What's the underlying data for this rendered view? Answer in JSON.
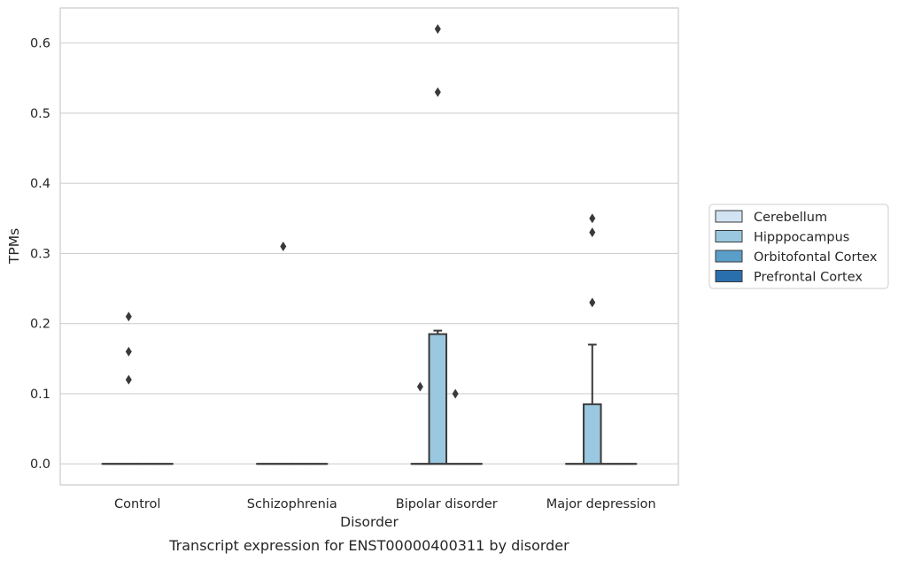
{
  "chart_data": {
    "type": "box",
    "caption": "Transcript expression for ENST00000400311 by disorder",
    "xlabel": "Disorder",
    "ylabel": "TPMs",
    "ylim": [
      -0.03,
      0.65
    ],
    "yticks": [
      0.0,
      0.1,
      0.2,
      0.3,
      0.4,
      0.5,
      0.6
    ],
    "ytick_labels": [
      "0.0",
      "0.1",
      "0.2",
      "0.3",
      "0.4",
      "0.5",
      "0.6"
    ],
    "grid": "horizontal",
    "legend_position": "right",
    "categories": [
      "Control",
      "Schizophrenia",
      "Bipolar disorder",
      "Major depression"
    ],
    "series": [
      {
        "name": "Cerebellum",
        "color": "#d1e2f2",
        "boxes": [
          {
            "category": "Control",
            "q1": 0.0,
            "median": 0.0,
            "q3": 0.0,
            "whisker_low": 0.0,
            "whisker_high": 0.0,
            "outliers": []
          },
          {
            "category": "Schizophrenia",
            "q1": 0.0,
            "median": 0.0,
            "q3": 0.0,
            "whisker_low": 0.0,
            "whisker_high": 0.0,
            "outliers": []
          },
          {
            "category": "Bipolar disorder",
            "q1": 0.0,
            "median": 0.0,
            "q3": 0.0,
            "whisker_low": 0.0,
            "whisker_high": 0.0,
            "outliers": [
              0.11
            ]
          },
          {
            "category": "Major depression",
            "q1": 0.0,
            "median": 0.0,
            "q3": 0.0,
            "whisker_low": 0.0,
            "whisker_high": 0.0,
            "outliers": []
          }
        ]
      },
      {
        "name": "Hipppocampus",
        "color": "#9ac8e0",
        "boxes": [
          {
            "category": "Control",
            "q1": 0.0,
            "median": 0.0,
            "q3": 0.0,
            "whisker_low": 0.0,
            "whisker_high": 0.0,
            "outliers": [
              0.12,
              0.16,
              0.21
            ]
          },
          {
            "category": "Schizophrenia",
            "q1": 0.0,
            "median": 0.0,
            "q3": 0.0,
            "whisker_low": 0.0,
            "whisker_high": 0.0,
            "outliers": [
              0.31
            ]
          },
          {
            "category": "Bipolar disorder",
            "q1": 0.0,
            "median": 0.0,
            "q3": 0.185,
            "whisker_low": 0.0,
            "whisker_high": 0.19,
            "outliers": [
              0.53,
              0.62
            ]
          },
          {
            "category": "Major depression",
            "q1": 0.0,
            "median": 0.0,
            "q3": 0.085,
            "whisker_low": 0.0,
            "whisker_high": 0.17,
            "outliers": [
              0.23,
              0.33,
              0.35
            ]
          }
        ]
      },
      {
        "name": "Orbitofontal Cortex",
        "color": "#5a9fca",
        "boxes": [
          {
            "category": "Control",
            "q1": 0.0,
            "median": 0.0,
            "q3": 0.0,
            "whisker_low": 0.0,
            "whisker_high": 0.0,
            "outliers": []
          },
          {
            "category": "Schizophrenia",
            "q1": 0.0,
            "median": 0.0,
            "q3": 0.0,
            "whisker_low": 0.0,
            "whisker_high": 0.0,
            "outliers": []
          },
          {
            "category": "Bipolar disorder",
            "q1": 0.0,
            "median": 0.0,
            "q3": 0.0,
            "whisker_low": 0.0,
            "whisker_high": 0.0,
            "outliers": [
              0.1
            ]
          },
          {
            "category": "Major depression",
            "q1": 0.0,
            "median": 0.0,
            "q3": 0.0,
            "whisker_low": 0.0,
            "whisker_high": 0.0,
            "outliers": []
          }
        ]
      },
      {
        "name": "Prefrontal Cortex",
        "color": "#2a6fad",
        "boxes": [
          {
            "category": "Control",
            "q1": 0.0,
            "median": 0.0,
            "q3": 0.0,
            "whisker_low": 0.0,
            "whisker_high": 0.0,
            "outliers": []
          },
          {
            "category": "Schizophrenia",
            "q1": 0.0,
            "median": 0.0,
            "q3": 0.0,
            "whisker_low": 0.0,
            "whisker_high": 0.0,
            "outliers": []
          },
          {
            "category": "Bipolar disorder",
            "q1": 0.0,
            "median": 0.0,
            "q3": 0.0,
            "whisker_low": 0.0,
            "whisker_high": 0.0,
            "outliers": []
          },
          {
            "category": "Major depression",
            "q1": 0.0,
            "median": 0.0,
            "q3": 0.0,
            "whisker_low": 0.0,
            "whisker_high": 0.0,
            "outliers": []
          }
        ]
      }
    ]
  }
}
